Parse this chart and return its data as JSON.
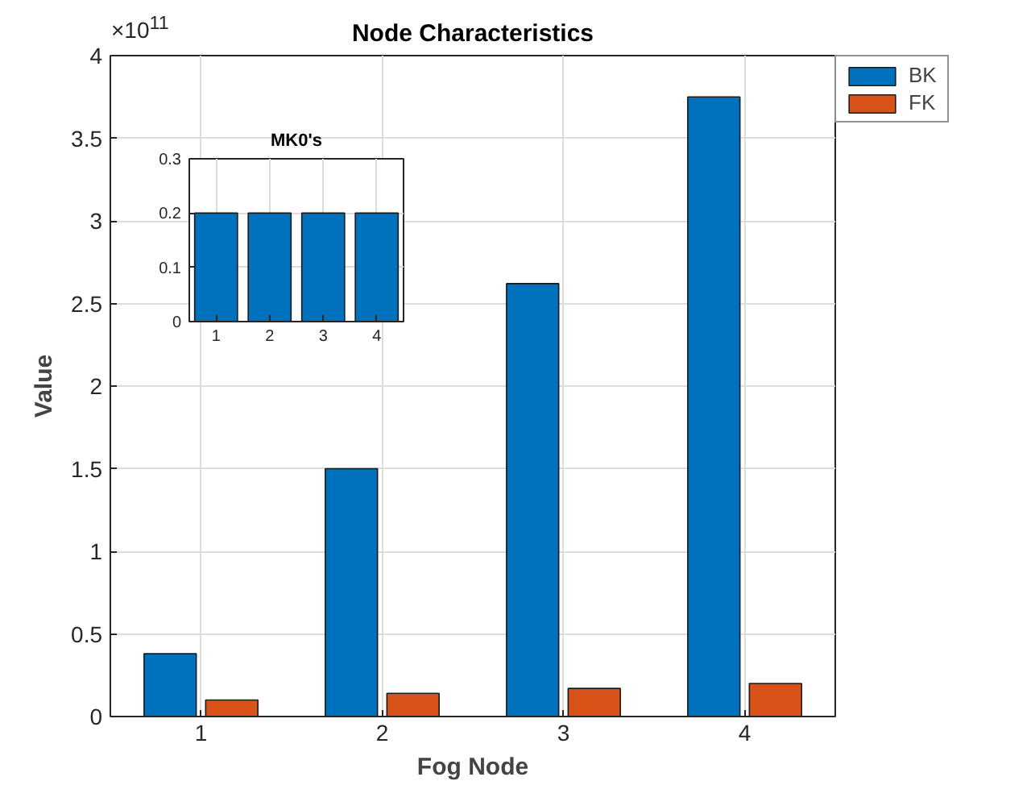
{
  "chart_data": [
    {
      "type": "bar",
      "title": "Node Characteristics",
      "xlabel": "Fog Node",
      "ylabel": "Value",
      "categories": [
        "1",
        "2",
        "3",
        "4"
      ],
      "series": [
        {
          "name": "BK",
          "color": "#0072bd",
          "values": [
            0.38,
            1.5,
            2.62,
            3.75
          ]
        },
        {
          "name": "FK",
          "color": "#d95319",
          "values": [
            0.1,
            0.14,
            0.17,
            0.2
          ]
        }
      ],
      "ylim": [
        0,
        4
      ],
      "yticks": [
        0,
        0.5,
        1,
        1.5,
        2,
        2.5,
        3,
        3.5,
        4
      ],
      "grid": true,
      "legend": "top right",
      "annotations": [
        "×10$^{11}$"
      ]
    },
    {
      "type": "bar",
      "title": "MK0's",
      "categories": [
        "1",
        "2",
        "3",
        "4"
      ],
      "series": [
        {
          "color": "#0072bd",
          "values": [
            0.2,
            0.2,
            0.2,
            0.2
          ]
        }
      ],
      "ylim": [
        0,
        0.3
      ],
      "yticks": [
        0,
        0.1,
        0.2,
        0.3
      ],
      "grid": true
    }
  ]
}
